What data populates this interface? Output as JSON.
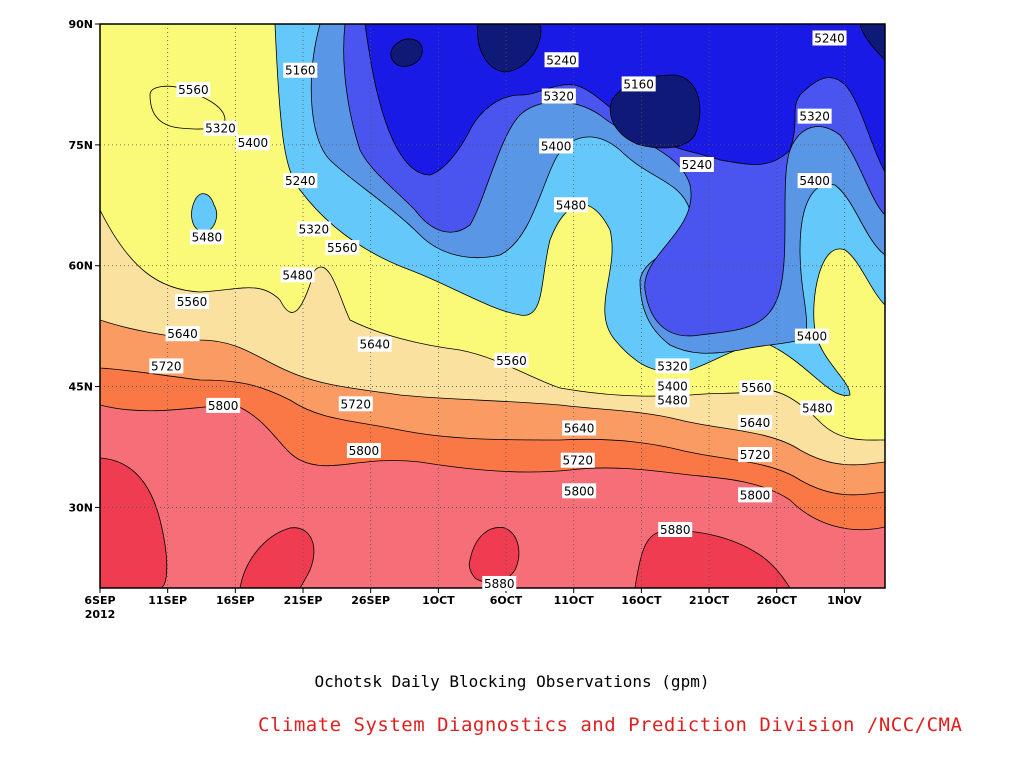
{
  "chart_data": {
    "type": "heatmap",
    "subtype": "filled-contour (time-latitude)",
    "title": "Ochotsk Daily Blocking Observations (gpm)",
    "credit": "Climate System Diagnostics and Prediction Division /NCC/CMA",
    "x_axis": {
      "label": "",
      "ticks": [
        "6SEP",
        "11SEP",
        "16SEP",
        "21SEP",
        "26SEP",
        "1OCT",
        "6OCT",
        "11OCT",
        "16OCT",
        "21OCT",
        "26OCT",
        "1NOV"
      ],
      "year": "2012",
      "range_days": [
        0,
        58
      ]
    },
    "y_axis": {
      "label": "",
      "ticks": [
        "30N",
        "45N",
        "60N",
        "75N",
        "90N"
      ],
      "range": [
        20,
        90
      ]
    },
    "grid": "dotted",
    "contour_levels": [
      5160,
      5240,
      5320,
      5400,
      5480,
      5560,
      5640,
      5720,
      5800,
      5880
    ],
    "fill_colors": {
      "below_5160": "#0f1a78",
      "5160_5240": "#1a1ae6",
      "5240_5320": "#4a55f0",
      "5320_5400": "#5a96e6",
      "5400_5480": "#64c8fa",
      "5480_5560": "#fafa78",
      "5560_5640": "#fae1a0",
      "5640_5720": "#fa9b64",
      "5720_5800": "#fa7846",
      "5800_5880": "#f56e78",
      "above_5880": "#f03c50"
    },
    "contour_labels": [
      {
        "value": "5160",
        "day": 14.8,
        "lat": 84.2
      },
      {
        "value": "5160",
        "day": 39.8,
        "lat": 82.5
      },
      {
        "value": "5240",
        "day": 34.1,
        "lat": 85.5
      },
      {
        "value": "5240",
        "day": 53.9,
        "lat": 88.2
      },
      {
        "value": "5240",
        "day": 14.8,
        "lat": 70.5
      },
      {
        "value": "5240",
        "day": 44.1,
        "lat": 72.5
      },
      {
        "value": "5320",
        "day": 33.9,
        "lat": 81.0
      },
      {
        "value": "5320",
        "day": 8.9,
        "lat": 77.0
      },
      {
        "value": "5320",
        "day": 15.8,
        "lat": 64.5
      },
      {
        "value": "5320",
        "day": 52.8,
        "lat": 78.5
      },
      {
        "value": "5320",
        "day": 42.3,
        "lat": 47.5
      },
      {
        "value": "5400",
        "day": 11.3,
        "lat": 75.2
      },
      {
        "value": "5400",
        "day": 33.7,
        "lat": 74.8
      },
      {
        "value": "5400",
        "day": 52.8,
        "lat": 70.5
      },
      {
        "value": "5400",
        "day": 52.6,
        "lat": 51.2
      },
      {
        "value": "5400",
        "day": 42.3,
        "lat": 45.0
      },
      {
        "value": "5480",
        "day": 7.9,
        "lat": 63.5
      },
      {
        "value": "5480",
        "day": 34.8,
        "lat": 67.5
      },
      {
        "value": "5480",
        "day": 14.6,
        "lat": 58.8
      },
      {
        "value": "5480",
        "day": 42.3,
        "lat": 43.3
      },
      {
        "value": "5480",
        "day": 53.0,
        "lat": 42.3
      },
      {
        "value": "5560",
        "day": 6.9,
        "lat": 81.8
      },
      {
        "value": "5560",
        "day": 17.9,
        "lat": 62.2
      },
      {
        "value": "5560",
        "day": 6.8,
        "lat": 55.5
      },
      {
        "value": "5560",
        "day": 30.4,
        "lat": 48.2
      },
      {
        "value": "5560",
        "day": 48.5,
        "lat": 44.8
      },
      {
        "value": "5640",
        "day": 6.1,
        "lat": 51.5
      },
      {
        "value": "5640",
        "day": 20.3,
        "lat": 50.2
      },
      {
        "value": "5640",
        "day": 35.4,
        "lat": 39.8
      },
      {
        "value": "5640",
        "day": 48.4,
        "lat": 40.5
      },
      {
        "value": "5720",
        "day": 4.9,
        "lat": 47.5
      },
      {
        "value": "5720",
        "day": 18.9,
        "lat": 42.8
      },
      {
        "value": "5720",
        "day": 35.3,
        "lat": 35.8
      },
      {
        "value": "5720",
        "day": 48.4,
        "lat": 36.5
      },
      {
        "value": "5800",
        "day": 9.1,
        "lat": 42.6
      },
      {
        "value": "5800",
        "day": 19.5,
        "lat": 37.0
      },
      {
        "value": "5800",
        "day": 35.4,
        "lat": 32.0
      },
      {
        "value": "5800",
        "day": 48.4,
        "lat": 31.5
      },
      {
        "value": "5880",
        "day": 42.5,
        "lat": 27.2
      },
      {
        "value": "5880",
        "day": 29.5,
        "lat": 20.5
      }
    ]
  }
}
